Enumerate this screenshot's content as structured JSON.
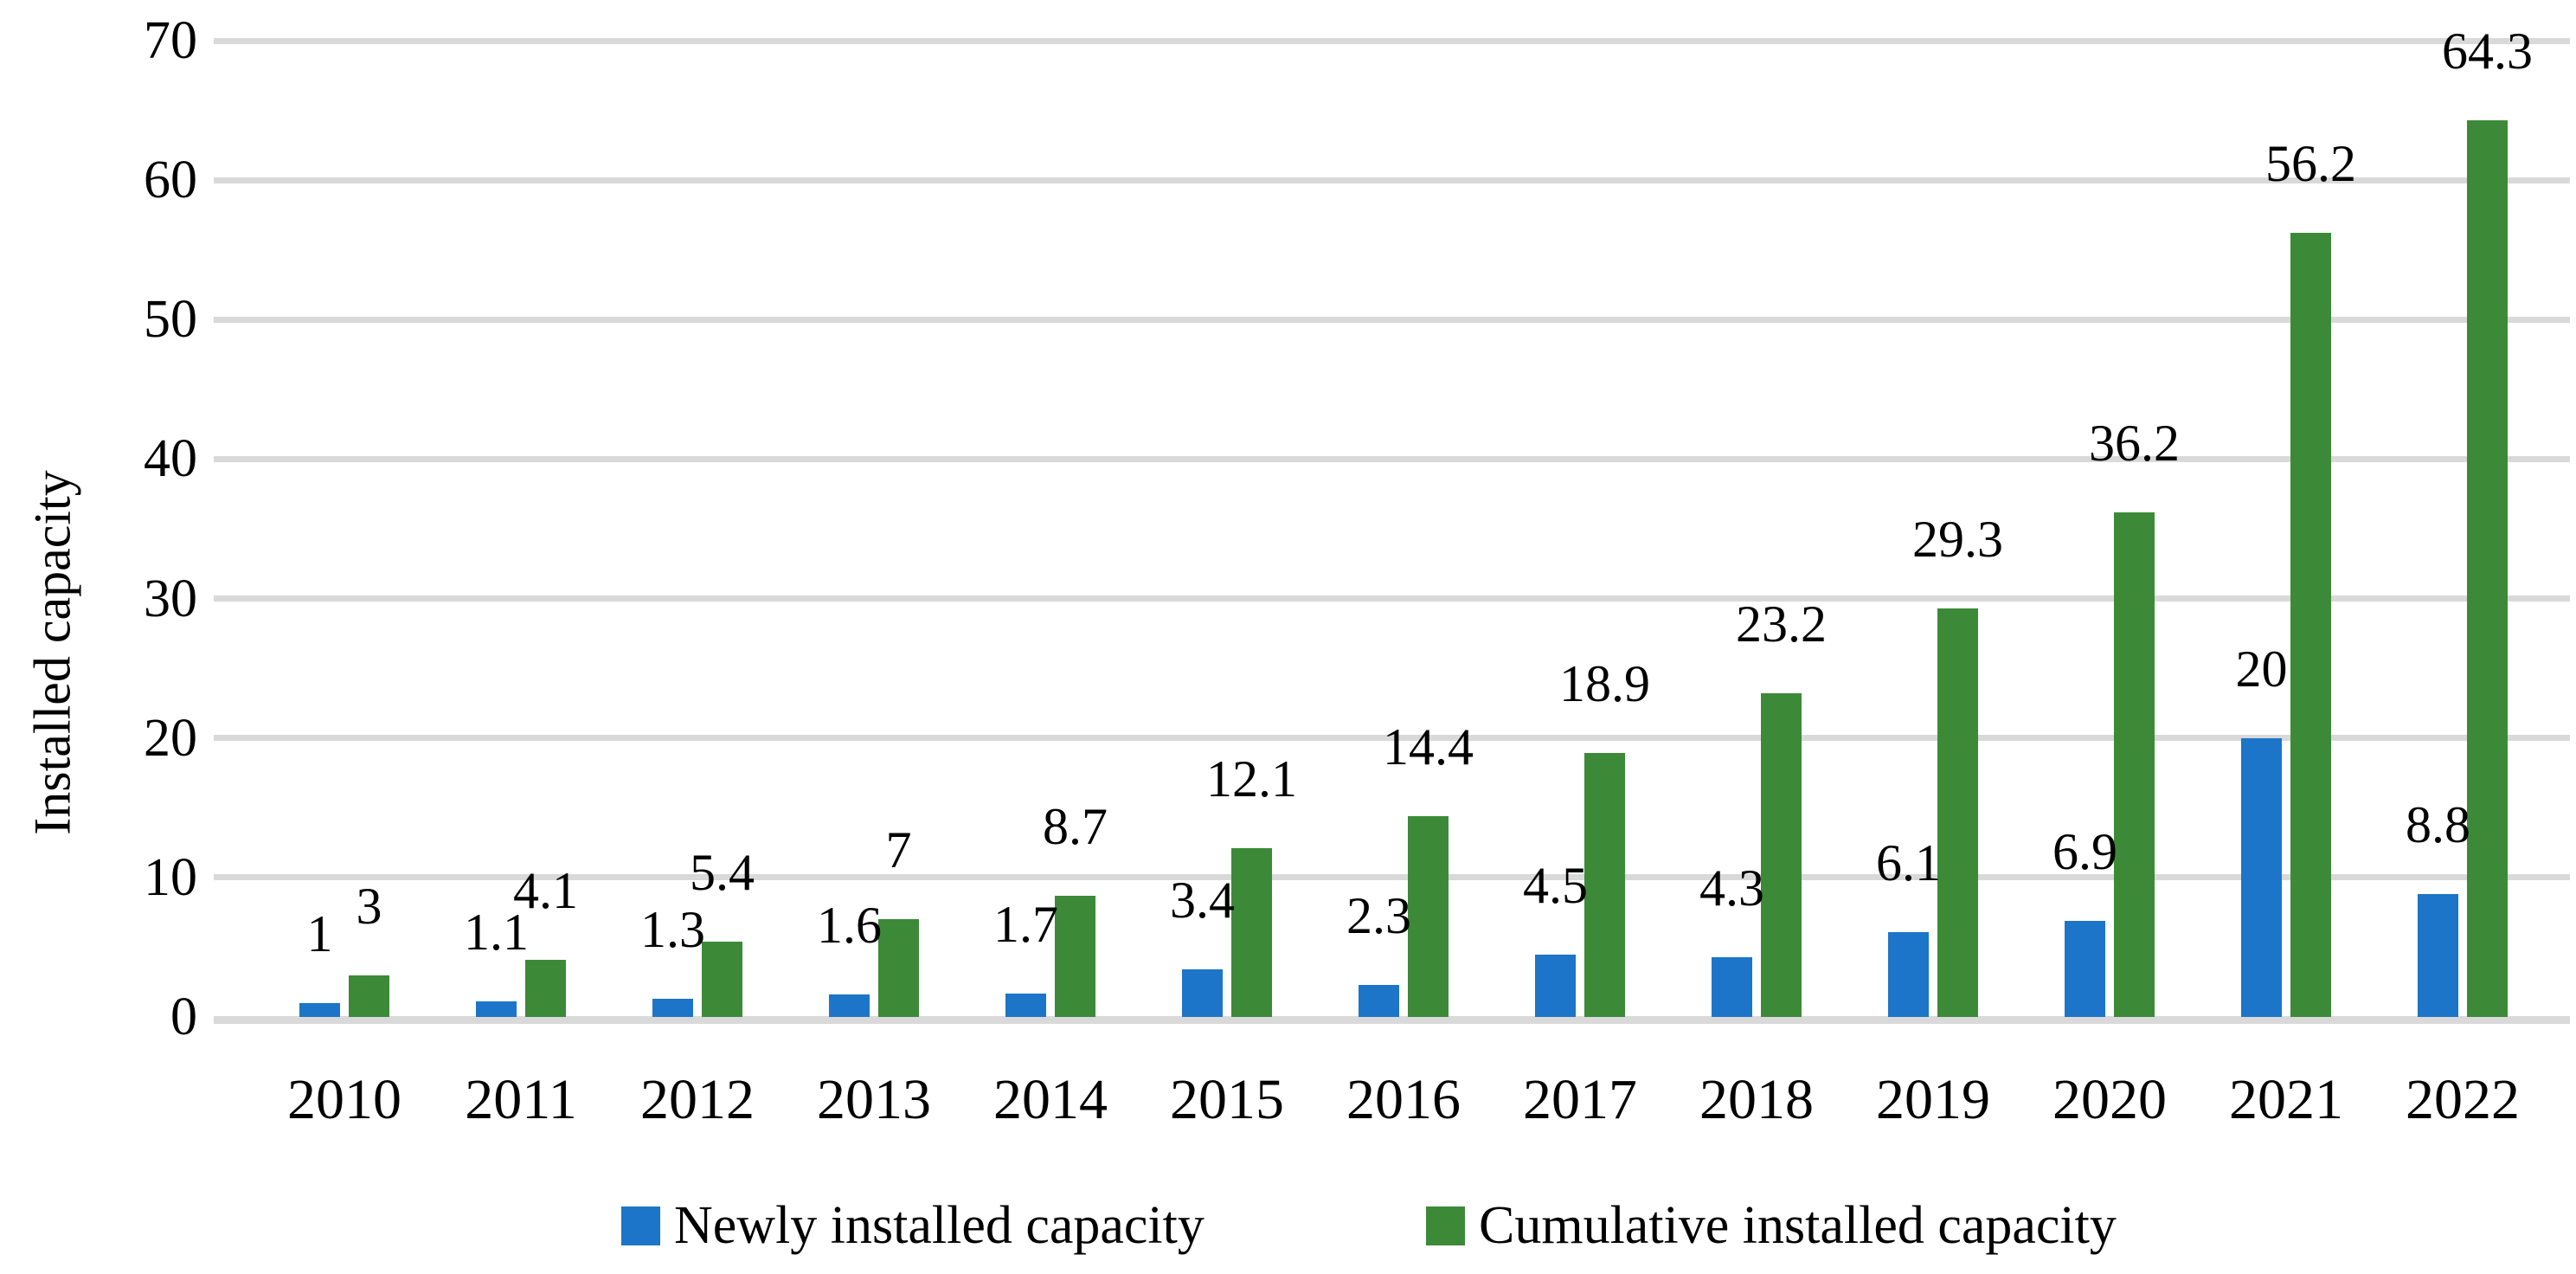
{
  "chart_data": {
    "type": "bar",
    "title": "",
    "xlabel": "",
    "ylabel": "Installed capacity",
    "ylim": [
      0,
      70
    ],
    "yticks": [
      0,
      10,
      20,
      30,
      40,
      50,
      60,
      70
    ],
    "grid": "horizontal",
    "legend_position": "bottom",
    "categories": [
      "2010",
      "2011",
      "2012",
      "2013",
      "2014",
      "2015",
      "2016",
      "2017",
      "2018",
      "2019",
      "2020",
      "2021",
      "2022"
    ],
    "series": [
      {
        "name": "Newly installed capacity",
        "color": "#1c75c8",
        "values": [
          1,
          1.1,
          1.3,
          1.6,
          1.7,
          3.4,
          2.3,
          4.5,
          4.3,
          6.1,
          6.9,
          20,
          8.8
        ],
        "labels": [
          "1",
          "1.1",
          "1.3",
          "1.6",
          "1.7",
          "3.4",
          "2.3",
          "4.5",
          "4.3",
          "6.1",
          "6.9",
          "20",
          "8.8"
        ]
      },
      {
        "name": "Cumulative installed capacity",
        "color": "#3c8a38",
        "values": [
          3,
          4.1,
          5.4,
          7,
          8.7,
          12.1,
          14.4,
          18.9,
          23.2,
          29.3,
          36.2,
          56.2,
          64.3
        ],
        "labels": [
          "3",
          "4.1",
          "5.4",
          "7",
          "8.7",
          "12.1",
          "14.4",
          "18.9",
          "23.2",
          "29.3",
          "36.2",
          "56.2",
          "64.3"
        ]
      }
    ],
    "gridline_color": "#d9d9d9",
    "text_color": "#000000",
    "background_color": "#ffffff"
  }
}
